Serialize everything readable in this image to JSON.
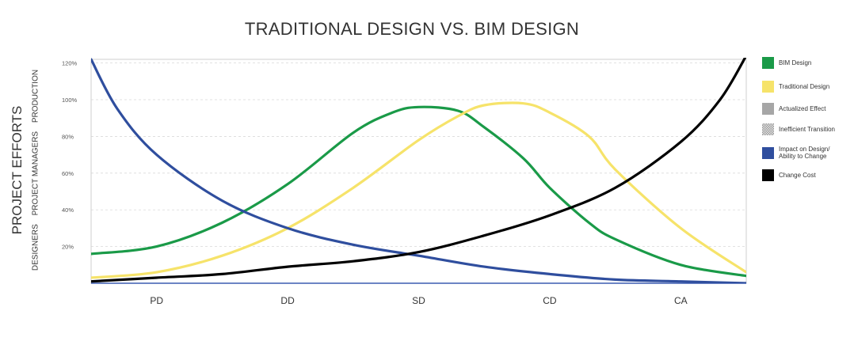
{
  "chart_data": {
    "type": "line",
    "title": "TRADITIONAL DESIGN VS. BIM DESIGN",
    "ylabel": "PROJECT EFFORTS",
    "ylabel_sub": [
      "DESIGNERS",
      "PROJECT MANAGERS",
      "PRODUCTION"
    ],
    "xlabel": "",
    "categories": [
      "PD",
      "DD",
      "SD",
      "CD",
      "CA"
    ],
    "y_ticks": [
      "20%",
      "40%",
      "60%",
      "80%",
      "100%",
      "120%"
    ],
    "ylim": [
      0,
      122
    ],
    "xlim": [
      0,
      5
    ],
    "grid": true,
    "legend_position": "right",
    "legend": [
      {
        "label": "BIM Design",
        "color": "#1a9a48",
        "pattern": "solid"
      },
      {
        "label": "Traditional Design",
        "color": "#f6e36a",
        "pattern": "solid"
      },
      {
        "label": "Actualized Effect",
        "color": "#a6a6a6",
        "pattern": "solid"
      },
      {
        "label": "Inefficient Transition",
        "color": "#cccccc",
        "pattern": "checker"
      },
      {
        "label": "Impact on Design/ Ability to Change",
        "color": "#2f4e9e",
        "pattern": "solid"
      },
      {
        "label": "Change Cost",
        "color": "#000000",
        "pattern": "solid"
      }
    ],
    "series": [
      {
        "name": "BIM Design",
        "color": "#1a9a48",
        "x": [
          0,
          0.5,
          1.0,
          1.5,
          2.0,
          2.3,
          2.5,
          2.8,
          3.0,
          3.3,
          3.5,
          3.8,
          4.0,
          4.5,
          5.0
        ],
        "y": [
          16,
          20,
          33,
          54,
          82,
          93,
          96,
          94,
          85,
          68,
          52,
          33,
          24,
          10,
          4
        ]
      },
      {
        "name": "Traditional Design",
        "color": "#f6e36a",
        "x": [
          0,
          0.5,
          1.0,
          1.5,
          2.0,
          2.5,
          2.8,
          3.0,
          3.3,
          3.5,
          3.8,
          4.0,
          4.5,
          5.0
        ],
        "y": [
          3,
          6,
          15,
          30,
          52,
          78,
          91,
          97,
          98,
          93,
          80,
          62,
          30,
          6
        ]
      },
      {
        "name": "Impact on Design/ Ability to Change",
        "color": "#2f4e9e",
        "x": [
          0,
          0.2,
          0.5,
          1.0,
          1.5,
          2.0,
          2.5,
          3.0,
          3.5,
          4.0,
          4.5,
          5.0
        ],
        "y": [
          122,
          95,
          70,
          45,
          30,
          21,
          15,
          9,
          5,
          2,
          1,
          0
        ]
      },
      {
        "name": "Change Cost",
        "color": "#000000",
        "x": [
          0,
          0.5,
          1.0,
          1.5,
          2.0,
          2.5,
          3.0,
          3.5,
          4.0,
          4.5,
          4.8,
          5.0
        ],
        "y": [
          1,
          3,
          5,
          9,
          12,
          17,
          26,
          37,
          52,
          77,
          100,
          124
        ]
      }
    ]
  }
}
